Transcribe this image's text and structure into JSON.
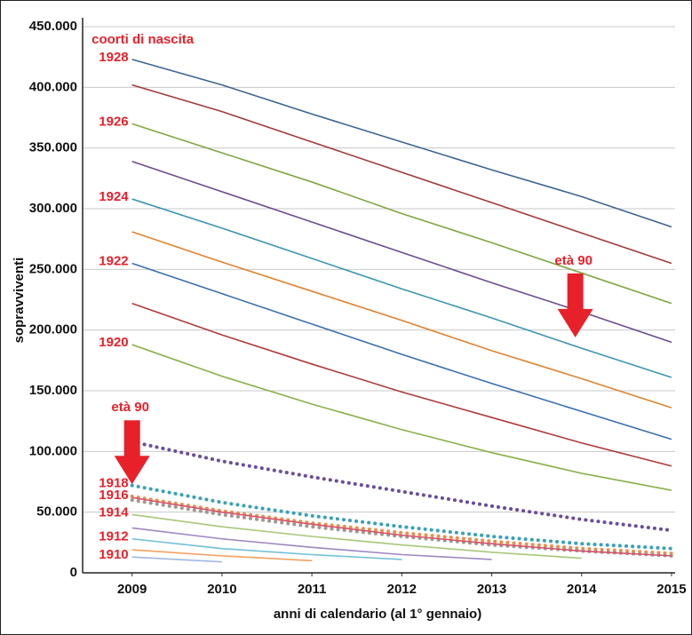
{
  "chart_data": {
    "type": "line",
    "x_label": "anni di calendario (al 1° gennaio)",
    "y_label": "sopravviventi",
    "x": [
      2009,
      2010,
      2011,
      2012,
      2013,
      2014,
      2015
    ],
    "xlim": [
      2008.45,
      2015.04
    ],
    "xticks": [
      2009,
      2010,
      2011,
      2012,
      2013,
      2014,
      2015
    ],
    "ylim": [
      0,
      450000
    ],
    "yticks": [
      0,
      {
        "value": 50000,
        "label": "50.000"
      },
      {
        "value": 100000,
        "label": "100.000"
      },
      {
        "value": 150000,
        "label": "150.000"
      },
      {
        "value": 200000,
        "label": "200.000"
      },
      {
        "value": 250000,
        "label": "250.000"
      },
      {
        "value": 300000,
        "label": "300.000"
      },
      {
        "value": 350000,
        "label": "350.000"
      },
      {
        "value": 400000,
        "label": "400.000"
      },
      {
        "value": 450000,
        "label": "450.000"
      }
    ],
    "grid": true,
    "label_color": "#e8202a",
    "series": [
      {
        "name": "1928",
        "color": "#3d6590",
        "style": "solid",
        "values": [
          423000,
          402000,
          378000,
          355000,
          332000,
          310000,
          285000
        ]
      },
      {
        "color": "#a3393b",
        "style": "solid",
        "values": [
          402000,
          380000,
          355000,
          330000,
          305000,
          280000,
          255000
        ]
      },
      {
        "name": "1926",
        "color": "#80a640",
        "style": "solid",
        "values": [
          370000,
          346000,
          322000,
          296000,
          272000,
          247000,
          222000
        ]
      },
      {
        "color": "#6b4d8d",
        "style": "solid",
        "values": [
          339000,
          314000,
          289000,
          264000,
          239000,
          215000,
          190000
        ]
      },
      {
        "name": "1924",
        "color": "#3b97b0",
        "style": "solid",
        "values": [
          308000,
          284000,
          259000,
          234000,
          210000,
          185000,
          161000
        ]
      },
      {
        "color": "#e0822e",
        "style": "solid",
        "values": [
          281000,
          256000,
          232000,
          208000,
          183000,
          160000,
          136000
        ]
      },
      {
        "name": "1922",
        "color": "#3b6fb0",
        "style": "solid",
        "values": [
          255000,
          230000,
          205000,
          180000,
          156000,
          133000,
          110000
        ]
      },
      {
        "color": "#b03a3a",
        "style": "solid",
        "values": [
          222000,
          196000,
          172000,
          149000,
          128000,
          107000,
          88000
        ]
      },
      {
        "name": "1920",
        "color": "#8ab04a",
        "style": "solid",
        "values": [
          188000,
          162000,
          139000,
          118000,
          99000,
          82000,
          68000
        ]
      },
      {
        "color": "#6a4d9d",
        "style": "dotted",
        "values": [
          108000,
          92000,
          79000,
          67000,
          55000,
          44000,
          35000
        ]
      },
      {
        "name": "1918",
        "color": "#3ba0b8",
        "style": "dotted",
        "values": [
          72000,
          58000,
          47000,
          38000,
          30000,
          24000,
          20000
        ]
      },
      {
        "color": "#e89050",
        "style": "dotted",
        "values": [
          63000,
          51000,
          41000,
          33000,
          26000,
          20000,
          16000
        ]
      },
      {
        "color": "#a09890",
        "style": "dotted",
        "values": [
          60000,
          48000,
          38000,
          30000,
          23000,
          18000,
          14000
        ]
      },
      {
        "name": "1916",
        "color": "#d8506a",
        "style": "solid",
        "values": [
          62000,
          50000,
          40000,
          31000,
          24000,
          18000,
          14000
        ]
      },
      {
        "name": "1914",
        "color": "#a8c878",
        "style": "solid",
        "values": [
          48000,
          38000,
          30000,
          23000,
          17000,
          12000,
          null
        ]
      },
      {
        "color": "#9f86c0",
        "style": "solid",
        "values": [
          37000,
          28000,
          21000,
          15000,
          11000,
          null,
          null
        ]
      },
      {
        "name": "1912",
        "color": "#70c0d8",
        "style": "solid",
        "values": [
          28000,
          20000,
          15000,
          11000,
          null,
          null,
          null
        ]
      },
      {
        "color": "#f4a060",
        "style": "solid",
        "values": [
          19000,
          14000,
          10000,
          null,
          null,
          null,
          null
        ]
      },
      {
        "name": "1910",
        "color": "#a0b8e0",
        "style": "solid",
        "values": [
          13000,
          9000,
          null,
          null,
          null,
          null,
          null
        ]
      }
    ],
    "annotations": [
      {
        "text": "coorti di nascita",
        "x": 2008.55,
        "y": 439000,
        "arrow": false
      },
      {
        "text": "età 90",
        "x": 2013.93,
        "y": 194000,
        "arrow": true
      },
      {
        "text": "età 90",
        "x": 2009.0,
        "y": 73000,
        "arrow": true
      }
    ]
  }
}
